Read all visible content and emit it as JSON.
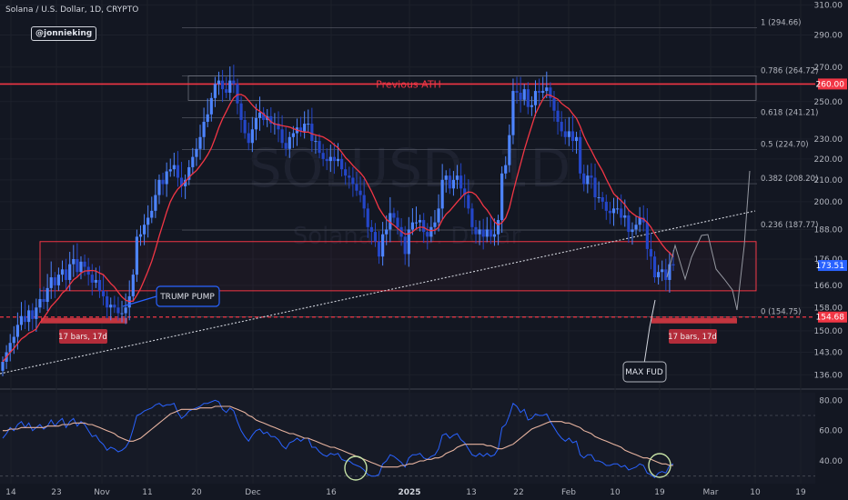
{
  "header": {
    "title": "Solana / U.S. Dollar, 1D, CRYPTO",
    "handle": "@jonnieking"
  },
  "watermark": {
    "symbol": "SOLUSD, 1D",
    "name": "Solana / U.S. Dollar"
  },
  "annotations": {
    "previous_ath": "Previous ATH",
    "trump_pump": "TRUMP PUMP",
    "bars_left": "17 bars, 17d",
    "bars_right": "17 bars, 17d",
    "max_fud": "MAX FUD"
  },
  "colors": {
    "background": "#131722",
    "bull": "#2962ff",
    "bear": "#2962ff",
    "ma": "#f23645",
    "zone": "#f23645",
    "rsi": "#2962ff",
    "rsi_ma": "#e8b4a0",
    "highlight": "#c5e1a5"
  },
  "price_labels": {
    "current": "173.51",
    "resistance": "260.00",
    "support": "154.68"
  },
  "chart_data": [
    {
      "type": "candlestick",
      "title": "Solana / U.S. Dollar, 1D, CRYPTO",
      "y_scale": "log",
      "ylim": [
        132,
        311
      ],
      "x_ticks": [
        "14",
        "23",
        "Nov",
        "11",
        "20",
        "Dec",
        "16",
        "2025",
        "13",
        "22",
        "Feb",
        "10",
        "19",
        "Mar",
        "10",
        "19"
      ],
      "y_ticks": [
        136,
        143,
        150,
        158,
        166,
        176,
        188,
        200,
        210,
        220,
        230,
        250,
        270,
        290,
        310
      ],
      "fib_levels": [
        {
          "ratio": "1",
          "price": 294.66,
          "label": "1 (294.66)"
        },
        {
          "ratio": "0.786",
          "price": 264.72,
          "label": "0.786 (264.72)"
        },
        {
          "ratio": "0.618",
          "price": 241.21,
          "label": "0.618 (241.21)"
        },
        {
          "ratio": "0.5",
          "price": 224.7,
          "label": "0.5 (224.70)"
        },
        {
          "ratio": "0.382",
          "price": 208.2,
          "label": "0.382 (208.20)"
        },
        {
          "ratio": "0.236",
          "price": 187.77,
          "label": "0.236 (187.77)"
        },
        {
          "ratio": "0",
          "price": 154.75,
          "label": "0 (154.75)"
        }
      ],
      "horizontal_levels": [
        260.0,
        154.68
      ],
      "zone": [
        164,
        183
      ],
      "closes": [
        140,
        143,
        146,
        148,
        152,
        155,
        153,
        157,
        154,
        158,
        161,
        160,
        165,
        169,
        166,
        170,
        172,
        168,
        174,
        176,
        171,
        175,
        173,
        170,
        167,
        168,
        164,
        162,
        158,
        159,
        158,
        156,
        156,
        158,
        162,
        170,
        185,
        186,
        190,
        193,
        196,
        203,
        210,
        208,
        214,
        215,
        217,
        211,
        207,
        210,
        216,
        221,
        225,
        231,
        239,
        243,
        252,
        260,
        262,
        257,
        255,
        262,
        260,
        249,
        240,
        233,
        228,
        235,
        241,
        244,
        240,
        242,
        238,
        238,
        235,
        228,
        225,
        231,
        233,
        236,
        234,
        238,
        238,
        229,
        229,
        223,
        220,
        219,
        221,
        219,
        220,
        215,
        212,
        211,
        208,
        205,
        203,
        197,
        189,
        187,
        183,
        177,
        186,
        188,
        195,
        193,
        189,
        185,
        178,
        188,
        191,
        191,
        192,
        187,
        185,
        189,
        191,
        197,
        210,
        212,
        206,
        210,
        212,
        206,
        203,
        197,
        189,
        186,
        188,
        185,
        188,
        185,
        186,
        192,
        213,
        217,
        232,
        256,
        255,
        251,
        257,
        247,
        248,
        256,
        255,
        256,
        258,
        252,
        245,
        239,
        234,
        231,
        234,
        229,
        231,
        213,
        208,
        212,
        211,
        202,
        202,
        200,
        196,
        195,
        197,
        197,
        193,
        194,
        187,
        188,
        190,
        193,
        191,
        180,
        177,
        169,
        171,
        172,
        168,
        174,
        173.51
      ],
      "ma_period": 10
    },
    {
      "type": "line",
      "title": "RSI",
      "ylim": [
        25,
        85
      ],
      "y_ticks": [
        40,
        60,
        80
      ],
      "bands": [
        30,
        70
      ],
      "series": [
        {
          "name": "RSI",
          "values": [
            55,
            58,
            62,
            60,
            64,
            66,
            62,
            65,
            60,
            62,
            64,
            61,
            63,
            67,
            63,
            66,
            68,
            62,
            66,
            68,
            63,
            66,
            64,
            60,
            56,
            57,
            53,
            51,
            47,
            49,
            48,
            46,
            47,
            49,
            53,
            61,
            70,
            71,
            73,
            74,
            75,
            77,
            78,
            76,
            77,
            77,
            78,
            72,
            68,
            70,
            73,
            74,
            75,
            76,
            78,
            78,
            79,
            80,
            79,
            74,
            72,
            75,
            73,
            66,
            60,
            56,
            53,
            57,
            60,
            61,
            58,
            59,
            56,
            56,
            54,
            50,
            48,
            52,
            53,
            55,
            53,
            55,
            55,
            49,
            49,
            46,
            44,
            43,
            45,
            44,
            45,
            41,
            40,
            40,
            38,
            37,
            36,
            34,
            31,
            30,
            30,
            31,
            38,
            40,
            44,
            43,
            41,
            39,
            36,
            42,
            44,
            44,
            45,
            42,
            41,
            43,
            44,
            48,
            57,
            58,
            55,
            57,
            58,
            54,
            52,
            48,
            44,
            43,
            45,
            43,
            45,
            43,
            44,
            48,
            62,
            64,
            70,
            78,
            76,
            72,
            74,
            67,
            68,
            71,
            70,
            70,
            71,
            66,
            62,
            58,
            55,
            53,
            55,
            52,
            53,
            44,
            42,
            44,
            44,
            40,
            40,
            39,
            37,
            37,
            38,
            38,
            36,
            37,
            34,
            35,
            36,
            38,
            37,
            32,
            31,
            29,
            32,
            33,
            32,
            37,
            38
          ]
        },
        {
          "name": "RSI MA",
          "values": [
            60,
            60,
            61,
            61,
            61,
            62,
            62,
            62,
            62,
            62,
            62,
            62,
            63,
            63,
            63,
            63,
            64,
            64,
            64,
            65,
            65,
            65,
            65,
            64,
            64,
            63,
            62,
            61,
            60,
            59,
            58,
            56,
            55,
            54,
            53,
            53,
            54,
            55,
            57,
            59,
            61,
            63,
            65,
            67,
            69,
            71,
            72,
            73,
            74,
            74,
            74,
            74,
            74,
            75,
            75,
            75,
            75,
            76,
            76,
            76,
            76,
            76,
            75,
            74,
            73,
            72,
            70,
            69,
            67,
            66,
            65,
            64,
            63,
            62,
            61,
            60,
            59,
            58,
            58,
            57,
            56,
            55,
            55,
            54,
            53,
            52,
            51,
            50,
            49,
            49,
            48,
            47,
            46,
            45,
            44,
            43,
            42,
            41,
            40,
            39,
            38,
            37,
            36,
            36,
            36,
            36,
            36,
            37,
            37,
            38,
            38,
            39,
            40,
            40,
            41,
            41,
            42,
            42,
            43,
            45,
            46,
            47,
            49,
            50,
            51,
            51,
            51,
            51,
            51,
            51,
            50,
            50,
            49,
            48,
            48,
            49,
            50,
            51,
            53,
            55,
            57,
            59,
            61,
            62,
            63,
            64,
            65,
            66,
            66,
            66,
            66,
            65,
            65,
            64,
            63,
            62,
            60,
            59,
            58,
            56,
            55,
            54,
            53,
            52,
            51,
            50,
            49,
            47,
            46,
            45,
            44,
            43,
            42,
            42,
            41,
            40,
            39,
            38,
            38,
            37,
            37
          ]
        }
      ]
    }
  ]
}
